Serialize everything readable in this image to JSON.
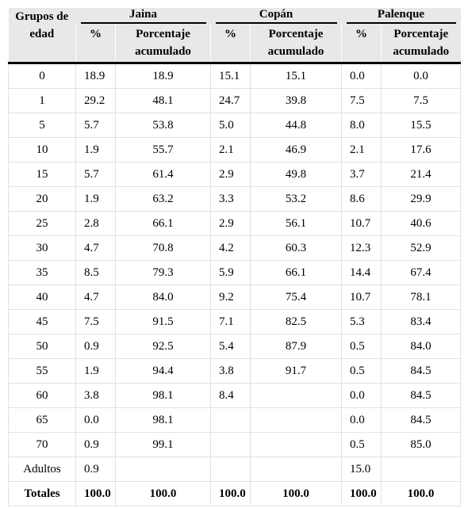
{
  "header": {
    "group_label": "Grupos de edad",
    "sites": [
      "Jaina",
      "Copán",
      "Palenque"
    ],
    "subheaders": [
      "%",
      "Porcentaje acumulado",
      "%",
      "Porcentaje acumulado",
      "%",
      "Porcentaje acumulado"
    ]
  },
  "table": {
    "rows": [
      [
        "0",
        "18.9",
        "18.9",
        "15.1",
        "15.1",
        "0.0",
        "0.0"
      ],
      [
        "1",
        "29.2",
        "48.1",
        "24.7",
        "39.8",
        "7.5",
        "7.5"
      ],
      [
        "5",
        "5.7",
        "53.8",
        "5.0",
        "44.8",
        "8.0",
        "15.5"
      ],
      [
        "10",
        "1.9",
        "55.7",
        "2.1",
        "46.9",
        "2.1",
        "17.6"
      ],
      [
        "15",
        "5.7",
        "61.4",
        "2.9",
        "49.8",
        "3.7",
        "21.4"
      ],
      [
        "20",
        "1.9",
        "63.2",
        "3.3",
        "53.2",
        "8.6",
        "29.9"
      ],
      [
        "25",
        "2.8",
        "66.1",
        "2.9",
        "56.1",
        "10.7",
        "40.6"
      ],
      [
        "30",
        "4.7",
        "70.8",
        "4.2",
        "60.3",
        "12.3",
        "52.9"
      ],
      [
        "35",
        "8.5",
        "79.3",
        "5.9",
        "66.1",
        "14.4",
        "67.4"
      ],
      [
        "40",
        "4.7",
        "84.0",
        "9.2",
        "75.4",
        "10.7",
        "78.1"
      ],
      [
        "45",
        "7.5",
        "91.5",
        "7.1",
        "82.5",
        "5.3",
        "83.4"
      ],
      [
        "50",
        "0.9",
        "92.5",
        "5.4",
        "87.9",
        "0.5",
        "84.0"
      ],
      [
        "55",
        "1.9",
        "94.4",
        "3.8",
        "91.7",
        "0.5",
        "84.5"
      ],
      [
        "60",
        "3.8",
        "98.1",
        "8.4",
        null,
        "0.0",
        "84.5"
      ],
      [
        "65",
        "0.0",
        "98.1",
        null,
        null,
        "0.0",
        "84.5"
      ],
      [
        "70",
        "0.9",
        "99.1",
        null,
        null,
        "0.5",
        "85.0"
      ],
      [
        "Adultos",
        "0.9",
        null,
        null,
        null,
        "15.0",
        null
      ],
      [
        "Totales",
        "100.0",
        "100.0",
        "100.0",
        "100.0",
        "100.0",
        "100.0"
      ]
    ]
  }
}
